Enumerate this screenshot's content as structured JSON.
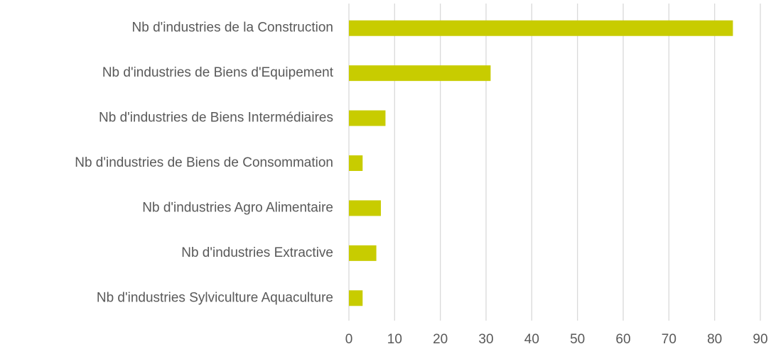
{
  "chart_data": {
    "type": "bar",
    "orientation": "horizontal",
    "categories": [
      "Nb d'industries de la Construction",
      "Nb d'industries de Biens d'Equipement",
      "Nb d'industries de Biens Intermédiaires",
      "Nb d'industries de Biens de Consommation",
      "Nb d'industries Agro Alimentaire",
      "Nb d'industries Extractive",
      "Nb d'industries Sylviculture Aquaculture"
    ],
    "values": [
      84,
      31,
      8,
      3,
      7,
      6,
      3
    ],
    "color": "#c8cc00",
    "xlim": [
      0,
      90
    ],
    "xticks": [
      0,
      10,
      20,
      30,
      40,
      50,
      60,
      70,
      80,
      90
    ],
    "grid": true
  }
}
